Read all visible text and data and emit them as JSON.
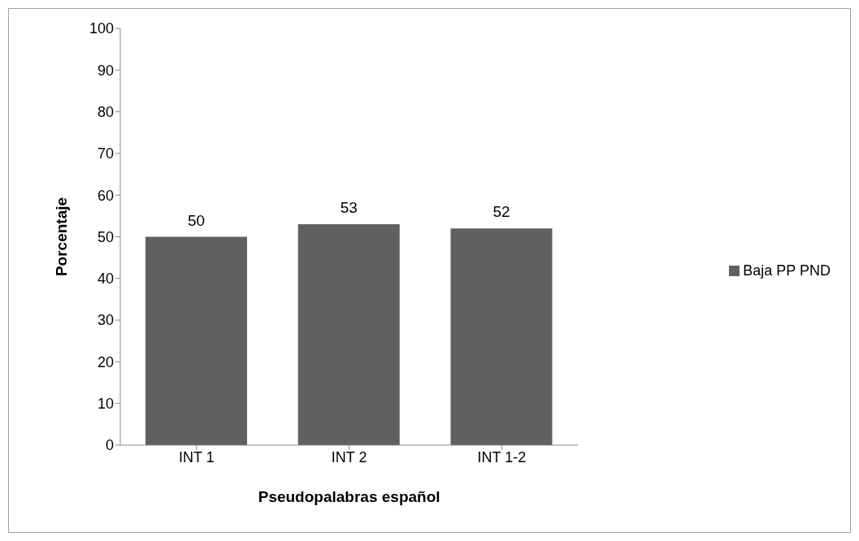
{
  "chart_data": {
    "type": "bar",
    "xlabel": "Pseudopalabras español",
    "ylabel": "Porcentaje",
    "categories": [
      "INT 1",
      "INT 2",
      "INT 1-2"
    ],
    "series": [
      {
        "name": "Baja PP PND",
        "color": "#606060",
        "values": [
          50,
          53,
          52
        ]
      }
    ],
    "ylim": [
      0,
      100
    ],
    "yticks": [
      0,
      10,
      20,
      30,
      40,
      50,
      60,
      70,
      80,
      90,
      100
    ],
    "grid": false,
    "legend": "right",
    "data_labels": true
  }
}
